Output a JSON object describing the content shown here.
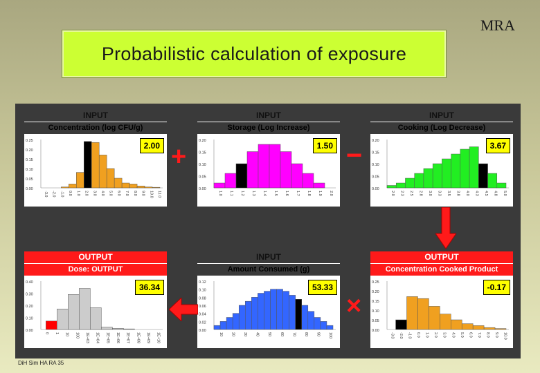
{
  "corner_label": "MRA",
  "title": "Probabilistic calculation of exposure",
  "footer": "DiH Sim HA RA 35",
  "operators": {
    "plus": "+",
    "minus": "−",
    "times": "×"
  },
  "colors": {
    "input_header": "#29e3f5",
    "output_header": "#ff1a1a",
    "selected_bar": "#000000",
    "arrow": "#ff1a1a",
    "title_box": "#ccff33"
  },
  "icons": {
    "arrow_down": "arrow-down-icon",
    "arrow_left": "arrow-left-icon"
  },
  "cards": [
    {
      "id": "concentration",
      "header": "INPUT",
      "kind": "input",
      "subheader": "Concentration (log CFU/g)",
      "readout": "2.00",
      "chart_data": {
        "type": "bar",
        "color": "#f0a020",
        "yticks": [
          "0.25",
          "0.20",
          "0.15",
          "0.10",
          "0.05",
          "0.00"
        ],
        "ymax": 0.25,
        "xticks": [
          "-3.0",
          "-2.0",
          "-1.0",
          "0.0",
          "1.0",
          "2.0",
          "3.0",
          "4.0",
          "5.0",
          "6.0",
          "7.0",
          "8.0",
          "9.0",
          "10.0",
          "11.0"
        ],
        "values": [
          0.005,
          0.02,
          0.08,
          0.24,
          0.235,
          0.17,
          0.1,
          0.05,
          0.025,
          0.02,
          0.01,
          0.005,
          0.003
        ],
        "selected": 3,
        "bar_start": 5
      }
    },
    {
      "id": "storage",
      "header": "INPUT",
      "kind": "input",
      "subheader": "Storage (Log Increase)",
      "readout": "1.50",
      "chart_data": {
        "type": "bar",
        "color": "#ff00ff",
        "yticks": [
          "0.20",
          "0.15",
          "0.10",
          "0.05",
          "0.00"
        ],
        "ymax": 0.2,
        "xticks": [
          "1.0",
          "1.1",
          "1.2",
          "1.3",
          "1.4",
          "1.5",
          "1.6",
          "1.7",
          "1.8",
          "1.9",
          "2.0"
        ],
        "values": [
          0.02,
          0.06,
          0.1,
          0.15,
          0.18,
          0.18,
          0.15,
          0.1,
          0.06,
          0.02
        ],
        "selected": 2,
        "bar_start": 0
      }
    },
    {
      "id": "cooking",
      "header": "INPUT",
      "kind": "input",
      "subheader": "Cooking (Log Decrease)",
      "readout": "3.67",
      "chart_data": {
        "type": "bar",
        "color": "#22ee22",
        "yticks": [
          "0.20",
          "0.15",
          "0.10",
          "0.05",
          "0.00"
        ],
        "ymax": 0.2,
        "xticks": [
          "2.0",
          "2.3",
          "2.5",
          "2.8",
          "3.0",
          "3.3",
          "3.5",
          "3.8",
          "4.0",
          "4.3",
          "4.5",
          "4.8",
          "5.0"
        ],
        "values": [
          0.01,
          0.02,
          0.04,
          0.06,
          0.08,
          0.1,
          0.12,
          0.14,
          0.16,
          0.17,
          0.1,
          0.06,
          0.02
        ],
        "selected": 10,
        "bar_start": 0
      }
    },
    {
      "id": "dose",
      "header": "OUTPUT",
      "kind": "output",
      "subheader": "Dose: OUTPUT",
      "readout": "36.34",
      "chart_data": {
        "type": "bar",
        "color": "#cccccc",
        "yticks": [
          "0.40",
          "0.30",
          "0.20",
          "0.10",
          "0.00"
        ],
        "ymax": 0.4,
        "xticks": [
          "0",
          "1",
          "10",
          "100",
          "1E+03",
          "1E+04",
          "1E+05",
          "1E+06",
          "1E+07",
          "1E+08",
          "1E+09",
          "1E+10"
        ],
        "values": [
          0.07,
          0.17,
          0.29,
          0.34,
          0.18,
          0.02,
          0.01,
          0.005
        ],
        "selected": 0,
        "selected_color": "#ff0000",
        "bar_start": 1
      }
    },
    {
      "id": "amount",
      "header": "INPUT",
      "kind": "input",
      "subheader": "Amount Consumed (g)",
      "readout": "53.33",
      "chart_data": {
        "type": "bar",
        "color": "#3366ff",
        "yticks": [
          "0.12",
          "0.10",
          "0.08",
          "0.06",
          "0.04",
          "0.02",
          "0.00"
        ],
        "ymax": 0.12,
        "xticks": [
          "10",
          "20",
          "30",
          "40",
          "50",
          "60",
          "70",
          "80",
          "90",
          "100"
        ],
        "values": [
          0.01,
          0.02,
          0.03,
          0.04,
          0.06,
          0.07,
          0.08,
          0.09,
          0.095,
          0.1,
          0.1,
          0.095,
          0.085,
          0.075,
          0.06,
          0.045,
          0.03,
          0.02,
          0.01
        ],
        "selected": 13,
        "bar_start": 0
      }
    },
    {
      "id": "cooked",
      "header": "OUTPUT",
      "kind": "output",
      "subheader": "Concentration Cooked Product",
      "readout": "-0.17",
      "chart_data": {
        "type": "bar",
        "color": "#f0a020",
        "yticks": [
          "0.25",
          "0.20",
          "0.15",
          "0.10",
          "0.05",
          "0.00"
        ],
        "ymax": 0.25,
        "xticks": [
          "-3.0",
          "-2.0",
          "-1.0",
          "0.0",
          "1.0",
          "2.0",
          "3.0",
          "4.0",
          "5.0",
          "6.0",
          "7.0",
          "8.0",
          "9.0",
          "10.0"
        ],
        "values": [
          0.05,
          0.17,
          0.16,
          0.12,
          0.08,
          0.05,
          0.03,
          0.02,
          0.01,
          0.005
        ],
        "selected": 0,
        "bar_start": 2
      }
    }
  ]
}
